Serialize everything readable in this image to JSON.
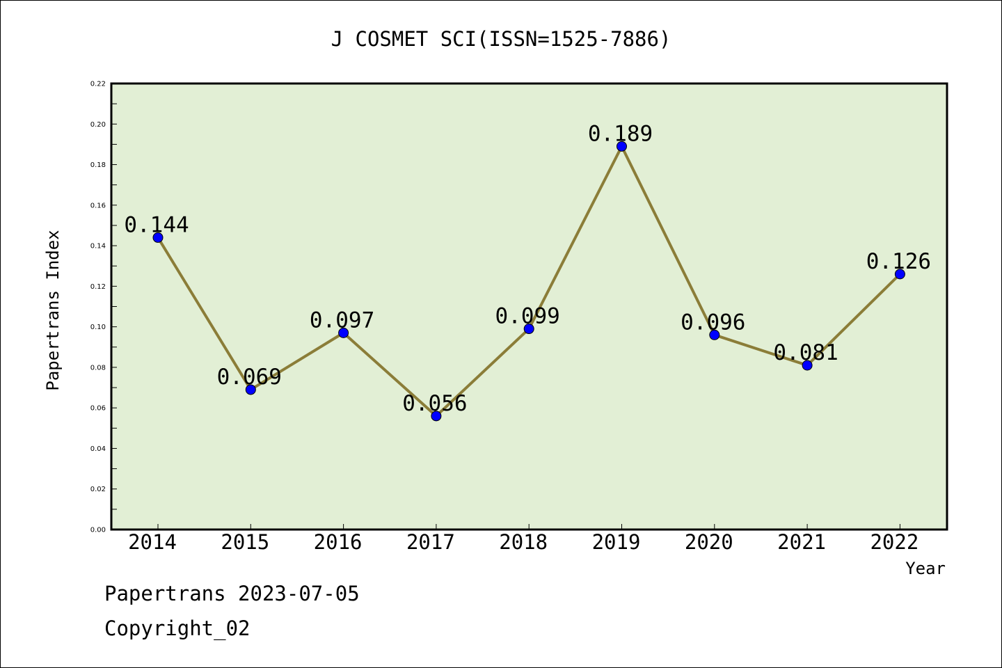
{
  "chart_data": {
    "type": "line",
    "title": "J COSMET SCI(ISSN=1525-7886)",
    "xlabel": "Year",
    "ylabel": "Papertrans Index",
    "categories": [
      "2014",
      "2015",
      "2016",
      "2017",
      "2018",
      "2019",
      "2020",
      "2021",
      "2022"
    ],
    "series": [
      {
        "values": [
          0.144,
          0.069,
          0.097,
          0.056,
          0.099,
          0.189,
          0.096,
          0.081,
          0.126
        ],
        "data_labels": [
          "0.144",
          "0.069",
          "0.097",
          "0.056",
          "0.099",
          "0.189",
          "0.096",
          "0.081",
          "0.126"
        ]
      }
    ],
    "ylim": [
      0,
      0.22
    ],
    "yticks": [
      "0.00",
      "0.02",
      "0.04",
      "0.06",
      "0.08",
      "0.10",
      "0.12",
      "0.14",
      "0.16",
      "0.18",
      "0.20",
      "0.22"
    ],
    "grid": false,
    "legend": "none",
    "colors": {
      "plot_background": "#e2efd5",
      "line": "#8b7d38",
      "marker": "#0000ff",
      "frame": "#000000"
    }
  },
  "footer": {
    "line1": "Papertrans 2023-07-05",
    "line2": "Copyright_02"
  }
}
